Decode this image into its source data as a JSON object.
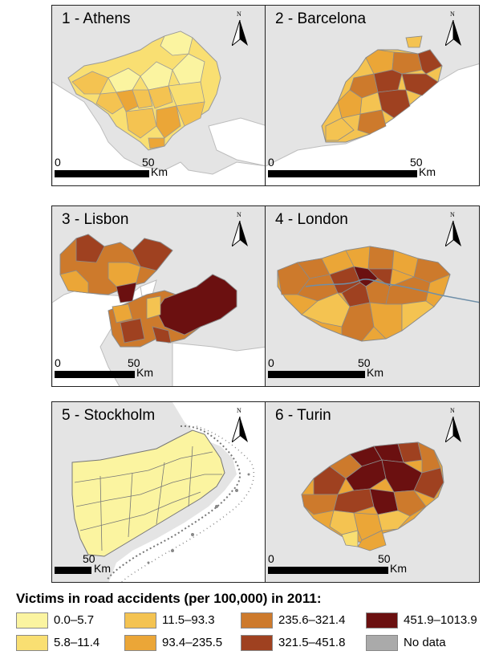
{
  "colors": {
    "c1": "#fbf4a0",
    "c2": "#f9df72",
    "c3": "#f4c351",
    "c4": "#eba637",
    "c5": "#cd7a2c",
    "c6": "#9f4120",
    "c7": "#6b1010",
    "nodata": "#aaaaaa",
    "background": "#e4e4e4",
    "water": "#ffffff",
    "coast": "#bdbdbd"
  },
  "panels": [
    {
      "title": "1 - Athens",
      "scale_start": "0",
      "scale_end": "50",
      "scale_unit": "Km",
      "north": "N"
    },
    {
      "title": "2 - Barcelona",
      "scale_start": "0",
      "scale_end": "50",
      "scale_unit": "Km",
      "north": "N"
    },
    {
      "title": "3 - Lisbon",
      "scale_start": "0",
      "scale_end": "50",
      "scale_unit": "Km",
      "north": "N"
    },
    {
      "title": "4 - London",
      "scale_start": "0",
      "scale_end": "50",
      "scale_unit": "Km",
      "north": "N"
    },
    {
      "title": "5 - Stockholm",
      "scale_start": "",
      "scale_end": "50",
      "scale_unit": "Km",
      "north": "N"
    },
    {
      "title": "6 - Turin",
      "scale_start": "0",
      "scale_end": "50",
      "scale_unit": "Km",
      "north": "N"
    }
  ],
  "legend": {
    "title": "Victims in road accidents (per 100,000) in 2011:",
    "items": [
      {
        "label": "0.0–5.7",
        "color": "#fbf4a0"
      },
      {
        "label": "5.8–11.4",
        "color": "#f9df72"
      },
      {
        "label": "11.5–93.3",
        "color": "#f4c351"
      },
      {
        "label": "93.4–235.5",
        "color": "#eba637"
      },
      {
        "label": "235.6–321.4",
        "color": "#cd7a2c"
      },
      {
        "label": "321.5–451.8",
        "color": "#9f4120"
      },
      {
        "label": "451.9–1013.9",
        "color": "#6b1010"
      },
      {
        "label": "No data",
        "color": "#aaaaaa"
      }
    ]
  }
}
